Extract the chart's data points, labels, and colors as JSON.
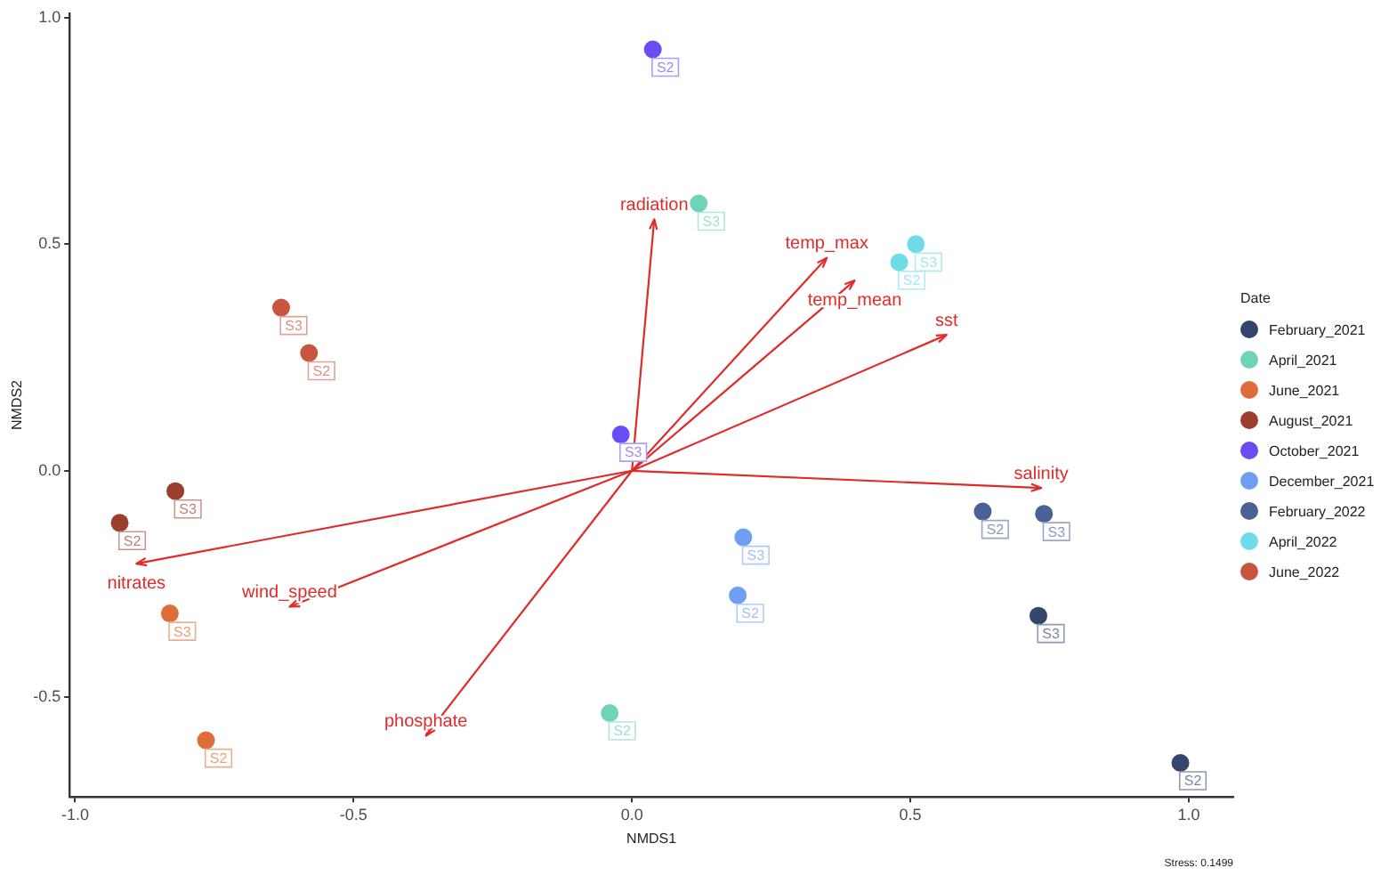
{
  "chart_data": {
    "type": "scatter",
    "xlabel": "NMDS1",
    "ylabel": "NMDS2",
    "legend_title": "Date",
    "legend": "right",
    "marker": "circle",
    "xlim": [
      -1.01,
      1.08
    ],
    "ylim": [
      -0.72,
      1.01
    ],
    "xticks": [
      {
        "value": -1,
        "label": "-1.0"
      },
      {
        "value": -0.5,
        "label": "-0.5"
      },
      {
        "value": 0,
        "label": "0.0"
      },
      {
        "value": 0.5,
        "label": "0.5"
      },
      {
        "value": 1,
        "label": "1.0"
      }
    ],
    "yticks": [
      {
        "value": -0.5,
        "label": "-0.5"
      },
      {
        "value": 0,
        "label": "0.0"
      },
      {
        "value": 0.5,
        "label": "0.5"
      },
      {
        "value": 1,
        "label": "1.0"
      }
    ],
    "annotations": [
      "Stress: 0.1499"
    ],
    "series": [
      {
        "name": "February_2021",
        "color": "#34456e",
        "x": [
          0.985,
          0.73
        ],
        "values": [
          -0.645,
          -0.32
        ],
        "value_labels": [
          "S2",
          "S3"
        ]
      },
      {
        "name": "April_2021",
        "color": "#6fd3b8",
        "x": [
          -0.04,
          0.12
        ],
        "values": [
          -0.535,
          0.59
        ],
        "value_labels": [
          "S2",
          "S3"
        ]
      },
      {
        "name": "June_2021",
        "color": "#dd6e3c",
        "x": [
          -0.765,
          -0.83
        ],
        "values": [
          -0.595,
          -0.315
        ],
        "value_labels": [
          "S2",
          "S3"
        ]
      },
      {
        "name": "August_2021",
        "color": "#9c3e2e",
        "x": [
          -0.92,
          -0.82
        ],
        "values": [
          -0.115,
          -0.045
        ],
        "value_labels": [
          "S2",
          "S3"
        ]
      },
      {
        "name": "October_2021",
        "color": "#6a4cf5",
        "x": [
          0.0375,
          -0.02
        ],
        "values": [
          0.93,
          0.08
        ],
        "value_labels": [
          "S2",
          "S3"
        ]
      },
      {
        "name": "December_2021",
        "color": "#6f9ff2",
        "x": [
          0.19,
          0.2
        ],
        "values": [
          -0.275,
          -0.147
        ],
        "value_labels": [
          "S2",
          "S3"
        ]
      },
      {
        "name": "February_2022",
        "color": "#4a6196",
        "x": [
          0.63,
          0.74
        ],
        "values": [
          -0.09,
          -0.095
        ],
        "value_labels": [
          "S2",
          "S3"
        ]
      },
      {
        "name": "April_2022",
        "color": "#6fdbe6",
        "x": [
          0.48,
          0.51
        ],
        "values": [
          0.46,
          0.5
        ],
        "value_labels": [
          "S2",
          "S3"
        ]
      },
      {
        "name": "June_2022",
        "color": "#c9553e",
        "x": [
          -0.58,
          -0.63
        ],
        "values": [
          0.26,
          0.36
        ],
        "value_labels": [
          "S2",
          "S3"
        ]
      },
      {
        "name": "radiation",
        "type": "line",
        "marker": "none",
        "color": "#e02b2b",
        "x": [
          0,
          0.04
        ],
        "values": [
          0,
          0.555
        ]
      },
      {
        "name": "temp_max",
        "type": "line",
        "marker": "none",
        "color": "#e02b2b",
        "x": [
          0,
          0.35
        ],
        "values": [
          0,
          0.47
        ]
      },
      {
        "name": "temp_mean",
        "type": "line",
        "marker": "none",
        "color": "#e02b2b",
        "x": [
          0,
          0.4
        ],
        "values": [
          0,
          0.42
        ]
      },
      {
        "name": "sst",
        "type": "line",
        "marker": "none",
        "color": "#e02b2b",
        "x": [
          0,
          0.565
        ],
        "values": [
          0,
          0.3
        ]
      },
      {
        "name": "salinity",
        "type": "line",
        "marker": "none",
        "color": "#e02b2b",
        "x": [
          0,
          0.735
        ],
        "values": [
          0,
          -0.038
        ]
      },
      {
        "name": "nitrates",
        "type": "line",
        "marker": "none",
        "color": "#e02b2b",
        "x": [
          0,
          -0.89
        ],
        "values": [
          0,
          -0.205
        ]
      },
      {
        "name": "wind_speed",
        "type": "line",
        "marker": "none",
        "color": "#e02b2b",
        "x": [
          0,
          -0.615
        ],
        "values": [
          0,
          -0.3
        ]
      },
      {
        "name": "phosphate",
        "type": "line",
        "marker": "none",
        "color": "#e02b2b",
        "x": [
          0,
          -0.37
        ],
        "values": [
          0,
          -0.585
        ]
      }
    ]
  }
}
